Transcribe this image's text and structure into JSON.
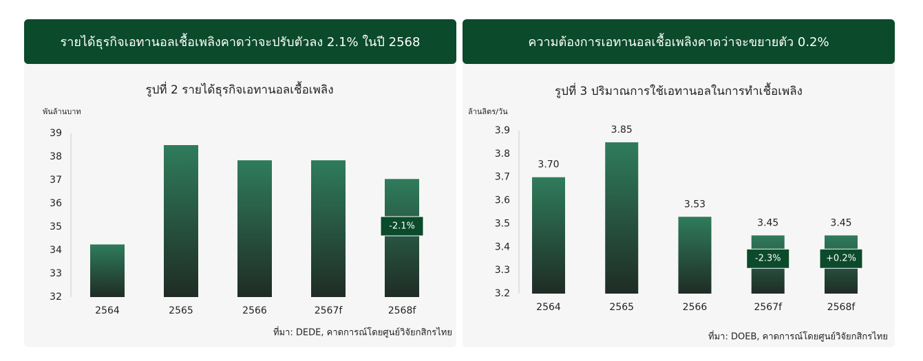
{
  "chart_data": [
    {
      "type": "bar",
      "header": "รายได้ธุรกิจเอทานอลเชื้อเพลิงคาดว่าจะปรับตัวลง 2.1% ในปี 2568",
      "title": "รูปที่ 2 รายได้ธุรกิจเอทานอลเชื้อเพลิง",
      "y_label": "พันล้านบาท",
      "categories": [
        "2564",
        "2565",
        "2566",
        "2567f",
        "2568f"
      ],
      "values": [
        34.25,
        38.5,
        37.85,
        37.85,
        37.05
      ],
      "bar_annotations": [
        null,
        null,
        null,
        null,
        "-2.1%"
      ],
      "ylim": [
        32,
        39
      ],
      "yticks": [
        32,
        33,
        34,
        35,
        36,
        37,
        38,
        39
      ],
      "grid": false,
      "source": "ที่มา: DEDE, คาดการณ์โดยศูนย์วิจัยกสิกรไทย"
    },
    {
      "type": "bar",
      "header": "ความต้องการเอทานอลเชื้อเพลิงคาดว่าจะขยายตัว 0.2%",
      "title": "รูปที่ 3 ปริมาณการใช้เอทานอลในการทำเชื้อเพลิง",
      "y_label": "ล้านลิตร/วัน",
      "categories": [
        "2564",
        "2565",
        "2566",
        "2567f",
        "2568f"
      ],
      "values": [
        3.7,
        3.85,
        3.53,
        3.45,
        3.45
      ],
      "value_labels": [
        "3.70",
        "3.85",
        "3.53",
        "3.45",
        "3.45"
      ],
      "bar_annotations": [
        null,
        null,
        null,
        "-2.3%",
        "+0.2%"
      ],
      "ylim": [
        3.2,
        3.9
      ],
      "yticks": [
        3.2,
        3.3,
        3.4,
        3.5,
        3.6,
        3.7,
        3.8,
        3.9
      ],
      "grid": false,
      "source": "ที่มา: DOEB, คาดการณ์โดยศูนย์วิจัยกสิกรไทย"
    }
  ]
}
